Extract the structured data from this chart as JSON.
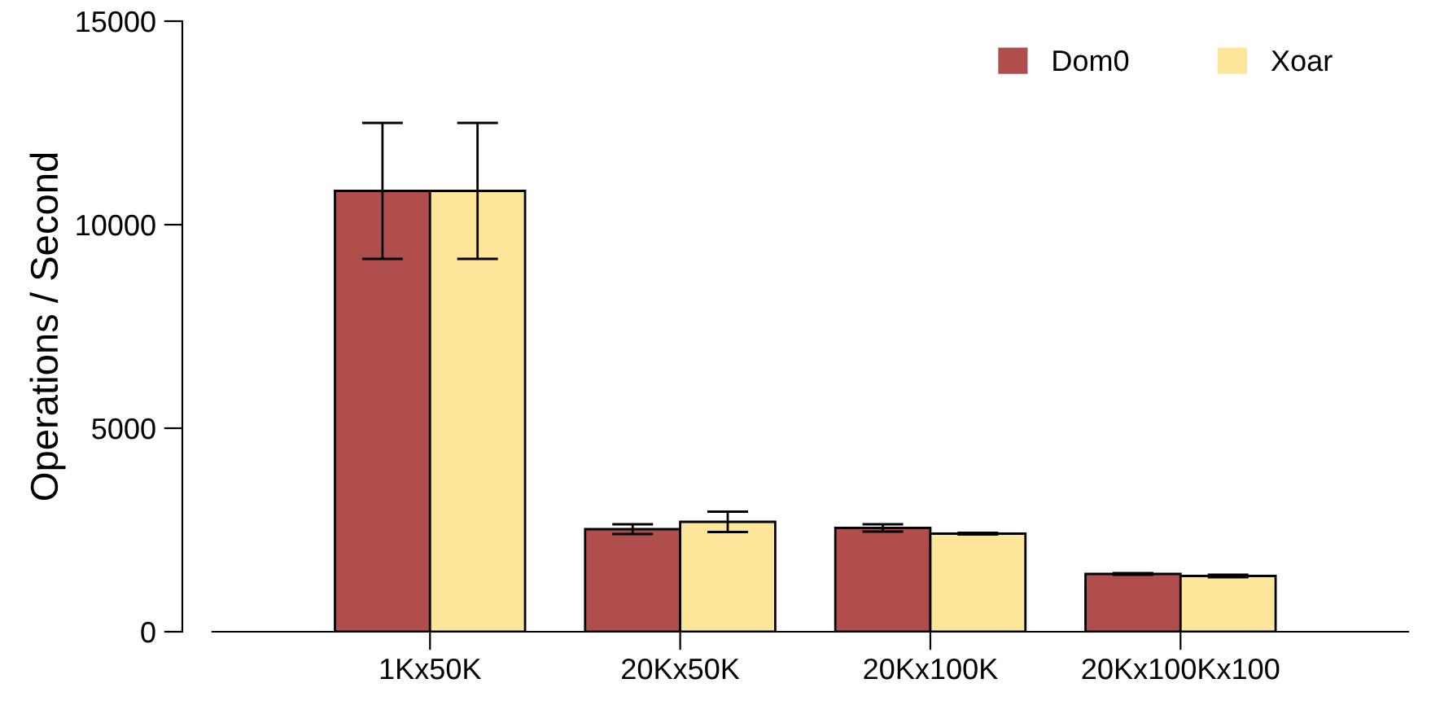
{
  "chart_data": {
    "type": "bar",
    "ylabel": "Operations / Second",
    "categories": [
      "1Kx50K",
      "20Kx50K",
      "20Kx100K",
      "20Kx100Kx100"
    ],
    "series": [
      {
        "name": "Dom0",
        "color": "#b04e4e",
        "values": [
          10830,
          2520,
          2550,
          1420
        ],
        "errors": [
          1670,
          120,
          90,
          20
        ]
      },
      {
        "name": "Xoar",
        "color": "#fde599",
        "values": [
          10830,
          2700,
          2410,
          1370
        ],
        "errors": [
          1670,
          250,
          20,
          30
        ]
      }
    ],
    "ylim": [
      0,
      15000
    ],
    "yticks": [
      0,
      5000,
      10000,
      15000
    ],
    "grid": false,
    "legend": "top right"
  }
}
